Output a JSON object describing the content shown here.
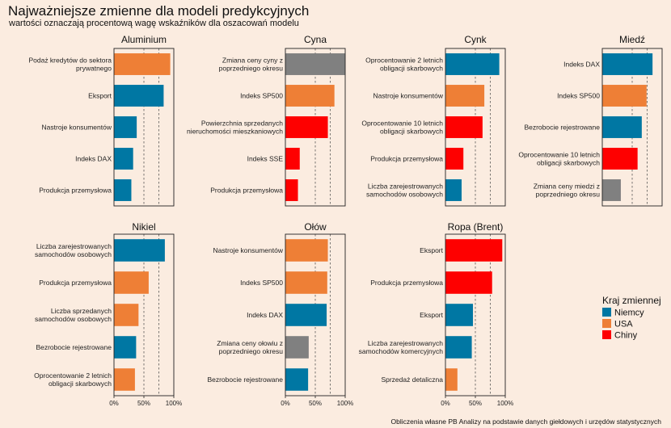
{
  "title": "Najważniejsze zmienne dla modeli predykcyjnych",
  "subtitle": "wartości oznaczają procentową wagę wskaźników dla oszacowań modelu",
  "caption": "Obliczenia własne PB Analizy na podstawie danych giełdowych i urzędów statystycznych",
  "legend": {
    "title": "Kraj zmiennej",
    "placement": "right",
    "items": [
      {
        "key": "de",
        "label": "Niemcy",
        "color": "#0077a3"
      },
      {
        "key": "us",
        "label": "USA",
        "color": "#ee7f36"
      },
      {
        "key": "cn",
        "label": "Chiny",
        "color": "#fe0000"
      },
      {
        "key": "other",
        "label": "",
        "color": "#808080"
      }
    ]
  },
  "chart_data": {
    "type": "bar",
    "orientation": "horizontal",
    "xlim": [
      0,
      100
    ],
    "x_ticks": [
      0,
      50,
      100
    ],
    "x_tick_labels": [
      "0%",
      "50%",
      "100%"
    ],
    "grid_dashed_at": [
      50,
      75
    ],
    "panels": [
      {
        "name": "Aluminium",
        "bars": [
          {
            "label": "Podaż kredytów do sektora prywatnego",
            "value": 94,
            "group": "us"
          },
          {
            "label": "Eksport",
            "value": 83,
            "group": "de"
          },
          {
            "label": "Nastroje konsumentów",
            "value": 38,
            "group": "de"
          },
          {
            "label": "Indeks DAX",
            "value": 32,
            "group": "de"
          },
          {
            "label": "Produkcja przemysłowa",
            "value": 29,
            "group": "de"
          }
        ]
      },
      {
        "name": "Cyna",
        "bars": [
          {
            "label": "Zmiana ceny cyny z poprzedniego okresu",
            "value": 100,
            "group": "other"
          },
          {
            "label": "Indeks SP500",
            "value": 82,
            "group": "us"
          },
          {
            "label": "Powierzchnia sprzedanych nieruchomości mieszkaniowych",
            "value": 71,
            "group": "cn"
          },
          {
            "label": "Indeks SSE",
            "value": 24,
            "group": "cn"
          },
          {
            "label": "Produkcja przemysłowa",
            "value": 21,
            "group": "cn"
          }
        ]
      },
      {
        "name": "Cynk",
        "bars": [
          {
            "label": "Oprocentowanie 2 letnich obligacji skarbowych",
            "value": 90,
            "group": "de"
          },
          {
            "label": "Nastroje konsumentów",
            "value": 65,
            "group": "us"
          },
          {
            "label": "Oprocentowanie 10 letnich obligacji skarbowych",
            "value": 62,
            "group": "cn"
          },
          {
            "label": "Produkcja przemysłowa",
            "value": 30,
            "group": "cn"
          },
          {
            "label": "Liczba zarejestrowanych samochodów osobowych",
            "value": 27,
            "group": "de"
          }
        ]
      },
      {
        "name": "Miedź",
        "bars": [
          {
            "label": "Indeks DAX",
            "value": 84,
            "group": "de"
          },
          {
            "label": "Indeks SP500",
            "value": 74,
            "group": "us"
          },
          {
            "label": "Bezrobocie rejestrowane",
            "value": 66,
            "group": "de"
          },
          {
            "label": "Oprocentowanie 10 letnich obligacji skarbowych",
            "value": 59,
            "group": "cn"
          },
          {
            "label": "Zmiana ceny miedzi z poprzedniego okresu",
            "value": 31,
            "group": "other"
          }
        ]
      },
      {
        "name": "Nikiel",
        "bars": [
          {
            "label": "Liczba zarejestrowanych samochodów osobowych",
            "value": 85,
            "group": "de"
          },
          {
            "label": "Produkcja przemysłowa",
            "value": 58,
            "group": "us"
          },
          {
            "label": "Liczba sprzedanych samochodów osobowych",
            "value": 41,
            "group": "us"
          },
          {
            "label": "Bezrobocie rejestrowane",
            "value": 37,
            "group": "de"
          },
          {
            "label": "Oprocentowanie 2 letnich obligacji skarbowych",
            "value": 35,
            "group": "us"
          }
        ]
      },
      {
        "name": "Ołów",
        "bars": [
          {
            "label": "Nastroje konsumentów",
            "value": 71,
            "group": "us"
          },
          {
            "label": "Indeks SP500",
            "value": 70,
            "group": "us"
          },
          {
            "label": "Indeks DAX",
            "value": 69,
            "group": "de"
          },
          {
            "label": "Zmiana ceny ołowiu z poprzedniego okresu",
            "value": 39,
            "group": "other"
          },
          {
            "label": "Bezrobocie rejestrowane",
            "value": 38,
            "group": "de"
          }
        ]
      },
      {
        "name": "Ropa (Brent)",
        "bars": [
          {
            "label": "Eksport",
            "value": 95,
            "group": "cn"
          },
          {
            "label": "Produkcja przemysłowa",
            "value": 78,
            "group": "cn"
          },
          {
            "label": "Eksport",
            "value": 46,
            "group": "de"
          },
          {
            "label": "Liczba zarejestrowanych samochodów komercyjnych",
            "value": 44,
            "group": "de"
          },
          {
            "label": "Sprzedaż detaliczna",
            "value": 20,
            "group": "us"
          }
        ]
      }
    ]
  }
}
